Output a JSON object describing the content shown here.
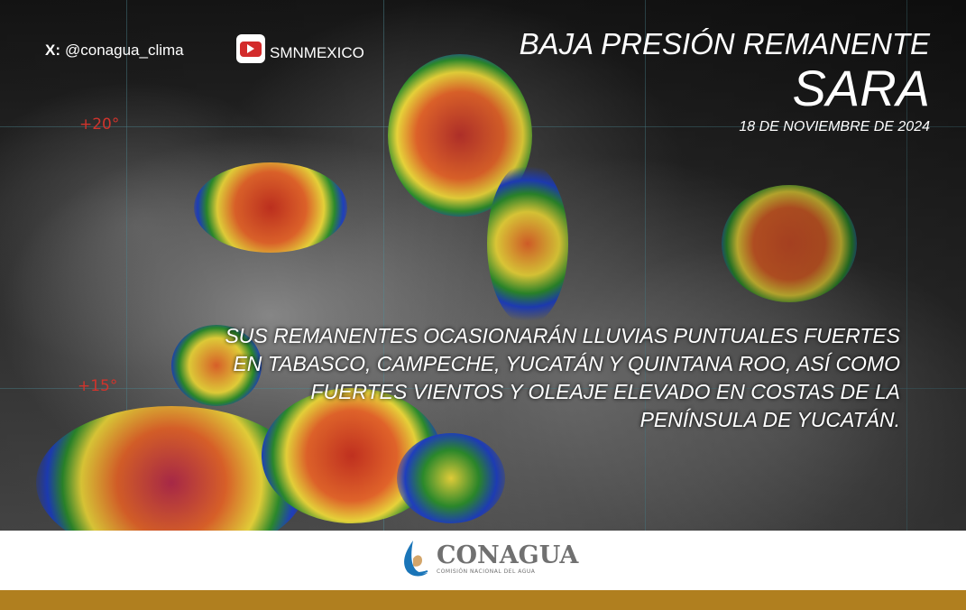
{
  "header": {
    "x_handle_prefix": "X:",
    "x_handle": "@conagua_clima",
    "youtube_channel": "SMNMEXICO",
    "title_line1": "BAJA PRESIÓN REMANENTE",
    "title_line2": "SARA",
    "date": "18 DE NOVIEMBRE DE 2024"
  },
  "map": {
    "latitude_labels": [
      "+20°",
      "+15°"
    ],
    "icons": [
      "x-logo-icon",
      "youtube-icon"
    ]
  },
  "message": {
    "lines": [
      "SUS REMANENTES OCASIONARÁN LLUVIAS PUNTUALES FUERTES",
      "EN TABASCO, CAMPECHE, YUCATÁN Y QUINTANA ROO, ASÍ COMO",
      "FUERTES VIENTOS Y OLEAJE ELEVADO EN COSTAS DE LA",
      "PENÍNSULA DE YUCATÁN."
    ]
  },
  "footer": {
    "logo_name": "CONAGUA",
    "logo_subtitle": "COMISIÓN NACIONAL DEL AGUA",
    "bar_color": "#b07f1f"
  }
}
